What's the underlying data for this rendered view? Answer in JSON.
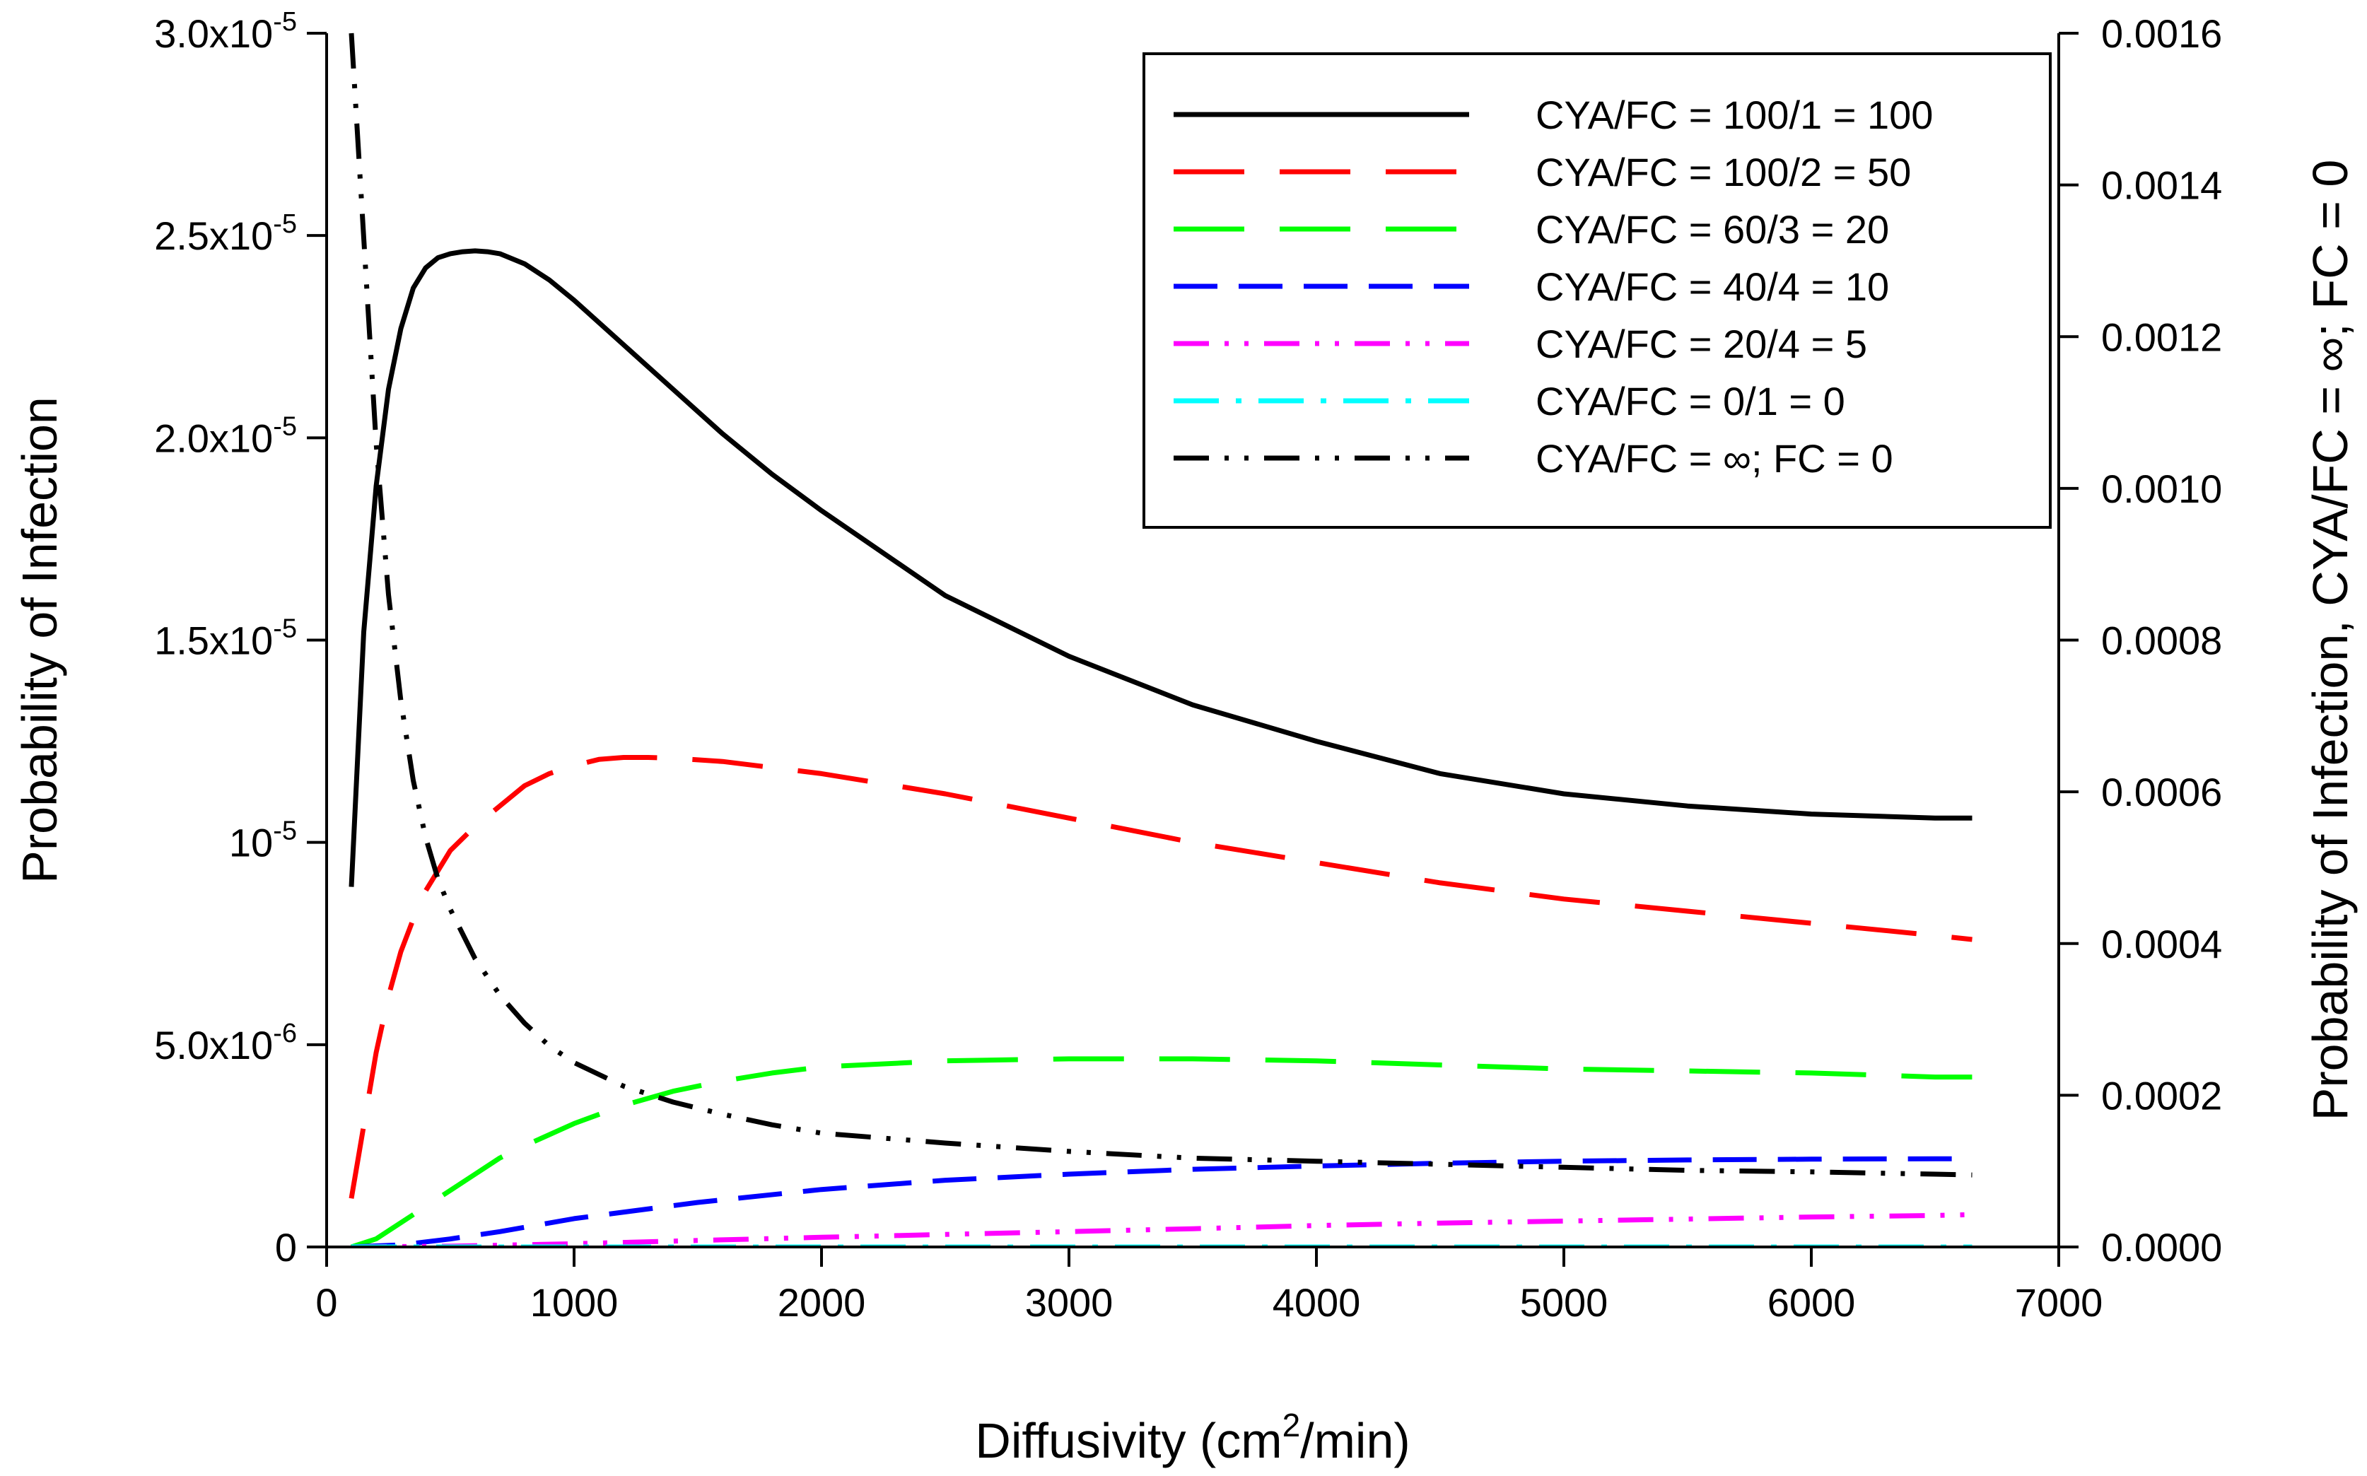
{
  "chart_data": {
    "type": "line",
    "title": "",
    "xlabel": {
      "prefix": "Diffusivity (cm",
      "sup": "2",
      "suffix": "/min)"
    },
    "ylabel": "Probability of Infection",
    "y2label": "Probability of Infection, CYA/FC = ∞; FC = 0",
    "xlim": [
      0,
      7000
    ],
    "ylim": [
      0,
      3e-05
    ],
    "y2lim": [
      0,
      0.0016
    ],
    "xticks": [
      {
        "value": 0,
        "label": "0"
      },
      {
        "value": 1000,
        "label": "1000"
      },
      {
        "value": 2000,
        "label": "2000"
      },
      {
        "value": 3000,
        "label": "3000"
      },
      {
        "value": 4000,
        "label": "4000"
      },
      {
        "value": 5000,
        "label": "5000"
      },
      {
        "value": 6000,
        "label": "6000"
      },
      {
        "value": 7000,
        "label": "7000"
      }
    ],
    "yticks": [
      {
        "value": 0,
        "mant": "0",
        "exp": ""
      },
      {
        "value": 5e-06,
        "mant": "5.0x10",
        "exp": "-6"
      },
      {
        "value": 1e-05,
        "mant": "10",
        "exp": "-5"
      },
      {
        "value": 1.5e-05,
        "mant": "1.5x10",
        "exp": "-5"
      },
      {
        "value": 2e-05,
        "mant": "2.0x10",
        "exp": "-5"
      },
      {
        "value": 2.5e-05,
        "mant": "2.5x10",
        "exp": "-5"
      },
      {
        "value": 3e-05,
        "mant": "3.0x10",
        "exp": "-5"
      }
    ],
    "y2ticks": [
      {
        "value": 0.0,
        "label": "0.0000"
      },
      {
        "value": 0.0002,
        "label": "0.0002"
      },
      {
        "value": 0.0004,
        "label": "0.0004"
      },
      {
        "value": 0.0006,
        "label": "0.0006"
      },
      {
        "value": 0.0008,
        "label": "0.0008"
      },
      {
        "value": 0.001,
        "label": "0.0010"
      },
      {
        "value": 0.0012,
        "label": "0.0012"
      },
      {
        "value": 0.0014,
        "label": "0.0014"
      },
      {
        "value": 0.0016,
        "label": "0.0016"
      }
    ],
    "legend_position": "top-right",
    "series": [
      {
        "name": "CYA/FC = 100/1 = 100",
        "color": "#000000",
        "dash": "solid",
        "axis": "left",
        "x": [
          100,
          150,
          200,
          250,
          300,
          350,
          400,
          450,
          500,
          550,
          600,
          650,
          700,
          800,
          900,
          1000,
          1200,
          1400,
          1600,
          1800,
          2000,
          2500,
          3000,
          3500,
          4000,
          4500,
          5000,
          5500,
          6000,
          6500,
          6650
        ],
        "y": [
          8.9e-06,
          1.52e-05,
          1.88e-05,
          2.12e-05,
          2.27e-05,
          2.37e-05,
          2.42e-05,
          2.445e-05,
          2.455e-05,
          2.46e-05,
          2.462e-05,
          2.46e-05,
          2.455e-05,
          2.43e-05,
          2.39e-05,
          2.34e-05,
          2.23e-05,
          2.12e-05,
          2.01e-05,
          1.91e-05,
          1.82e-05,
          1.61e-05,
          1.46e-05,
          1.34e-05,
          1.25e-05,
          1.17e-05,
          1.12e-05,
          1.09e-05,
          1.07e-05,
          1.06e-05,
          1.06e-05
        ]
      },
      {
        "name": "CYA/FC = 100/2 = 50",
        "color": "#ff0000",
        "dash": "long",
        "axis": "left",
        "x": [
          100,
          150,
          200,
          250,
          300,
          350,
          400,
          500,
          600,
          700,
          800,
          900,
          1000,
          1100,
          1200,
          1300,
          1400,
          1600,
          1800,
          2000,
          2500,
          3000,
          3500,
          4000,
          4500,
          5000,
          5500,
          6000,
          6500,
          6650
        ],
        "y": [
          1.2e-06,
          3e-06,
          4.8e-06,
          6.2e-06,
          7.3e-06,
          8.1e-06,
          8.8e-06,
          9.8e-06,
          1.04e-05,
          1.09e-05,
          1.14e-05,
          1.17e-05,
          1.19e-05,
          1.205e-05,
          1.21e-05,
          1.21e-05,
          1.208e-05,
          1.2e-05,
          1.185e-05,
          1.17e-05,
          1.12e-05,
          1.06e-05,
          1e-05,
          9.5e-06,
          9e-06,
          8.6e-06,
          8.3e-06,
          8e-06,
          7.7e-06,
          7.6e-06
        ]
      },
      {
        "name": "CYA/FC = 60/3 = 20",
        "color": "#00ff00",
        "dash": "long",
        "axis": "left",
        "x": [
          100,
          200,
          300,
          400,
          500,
          600,
          700,
          800,
          1000,
          1200,
          1400,
          1600,
          1800,
          2000,
          2500,
          3000,
          3500,
          4000,
          4500,
          5000,
          5500,
          6000,
          6500,
          6650
        ],
        "y": [
          0,
          2e-07,
          6e-07,
          1e-06,
          1.4e-06,
          1.8e-06,
          2.2e-06,
          2.5e-06,
          3.05e-06,
          3.5e-06,
          3.85e-06,
          4.1e-06,
          4.3e-06,
          4.45e-06,
          4.6e-06,
          4.65e-06,
          4.65e-06,
          4.6e-06,
          4.5e-06,
          4.4e-06,
          4.35e-06,
          4.3e-06,
          4.2e-06,
          4.2e-06
        ]
      },
      {
        "name": "CYA/FC = 40/4 = 10",
        "color": "#0000ff",
        "dash": "medium",
        "axis": "left",
        "x": [
          100,
          300,
          500,
          700,
          1000,
          1500,
          2000,
          2500,
          3000,
          3500,
          4000,
          4500,
          5000,
          5500,
          6000,
          6500,
          6650
        ],
        "y": [
          0,
          5e-08,
          2e-07,
          3.8e-07,
          7e-07,
          1.1e-06,
          1.42e-06,
          1.65e-06,
          1.8e-06,
          1.92e-06,
          2e-06,
          2.07e-06,
          2.12e-06,
          2.15e-06,
          2.17e-06,
          2.18e-06,
          2.18e-06
        ]
      },
      {
        "name": "CYA/FC = 20/4 = 5",
        "color": "#ff00ff",
        "dash": "dashdotdot",
        "axis": "left",
        "x": [
          100,
          500,
          1000,
          1500,
          2000,
          2500,
          3000,
          3500,
          4000,
          4500,
          5000,
          5500,
          6000,
          6500,
          6650
        ],
        "y": [
          0,
          2e-08,
          8e-08,
          1.6e-07,
          2.4e-07,
          3.1e-07,
          3.8e-07,
          4.5e-07,
          5.3e-07,
          5.9e-07,
          6.4e-07,
          6.9e-07,
          7.4e-07,
          7.8e-07,
          8e-07
        ]
      },
      {
        "name": "CYA/FC = 0/1 = 0",
        "color": "#00ffff",
        "dash": "dashdot",
        "axis": "left",
        "x": [
          100,
          1000,
          2000,
          3000,
          4000,
          5000,
          6000,
          6650
        ],
        "y": [
          0,
          0,
          0,
          0,
          0,
          0,
          0,
          0
        ]
      },
      {
        "name": "CYA/FC = ∞; FC = 0",
        "color": "#000000",
        "dash": "dashdotdot",
        "axis": "right",
        "x": [
          100,
          150,
          200,
          250,
          300,
          350,
          400,
          450,
          500,
          600,
          700,
          800,
          900,
          1000,
          1200,
          1400,
          1600,
          1800,
          2000,
          2500,
          3000,
          3500,
          4000,
          4500,
          5000,
          5500,
          6000,
          6500,
          6650
        ],
        "y": [
          0.0016,
          0.00133,
          0.00106,
          0.00086,
          0.00072,
          0.000615,
          0.00054,
          0.000485,
          0.000445,
          0.00038,
          0.000332,
          0.000295,
          0.000265,
          0.000243,
          0.000212,
          0.000191,
          0.000175,
          0.000161,
          0.00015,
          0.000137,
          0.000126,
          0.000117,
          0.000113,
          0.000109,
          0.000105,
          0.000101,
          9.9e-05,
          9.6e-05,
          9.5e-05
        ]
      }
    ]
  }
}
